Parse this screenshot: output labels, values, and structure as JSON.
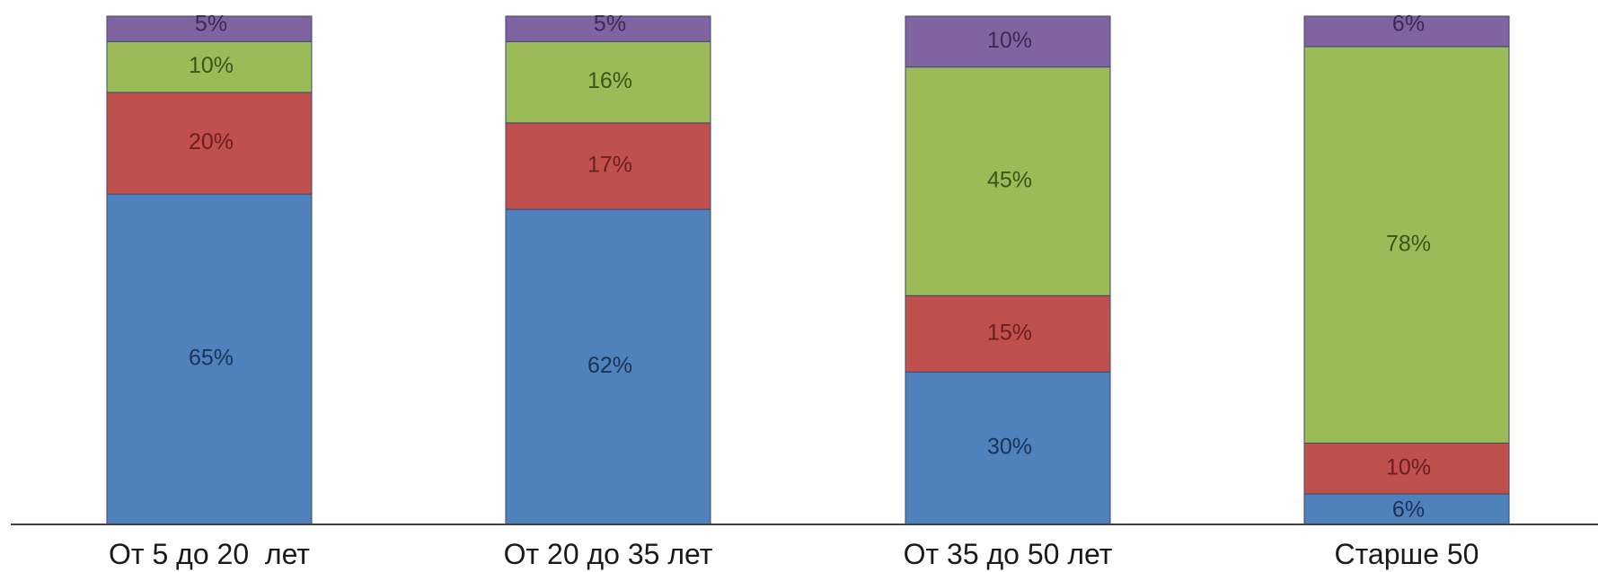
{
  "chart_data": {
    "type": "bar",
    "stacked": true,
    "title": "",
    "xlabel": "",
    "ylabel": "",
    "ylim": [
      0,
      100
    ],
    "grid": false,
    "legend": "none",
    "categories": [
      "От 5 до 20  лет",
      "От 20 до 35 лет",
      "От 35 до 50 лет",
      "Старше 50"
    ],
    "series": [
      {
        "color": "#4f81bd",
        "label_color": "#1c3355",
        "values": [
          65,
          62,
          30,
          6
        ],
        "labels": [
          "65%",
          "62%",
          "30%",
          "6%"
        ]
      },
      {
        "color": "#c0504d",
        "label_color": "#6b1f1d",
        "values": [
          20,
          17,
          15,
          10
        ],
        "labels": [
          "20%",
          "17%",
          "15%",
          "10%"
        ]
      },
      {
        "color": "#9bbb59",
        "label_color": "#3d5419",
        "values": [
          10,
          16,
          45,
          78
        ],
        "labels": [
          "10%",
          "16%",
          "45%",
          "78%"
        ]
      },
      {
        "color": "#8064a2",
        "label_color": "#3a2a55",
        "values": [
          5,
          5,
          10,
          6
        ],
        "labels": [
          "5%",
          "5%",
          "10%",
          "6%"
        ]
      }
    ],
    "axis_color": "#404040",
    "segment_border_color": "#3b4a6b"
  }
}
